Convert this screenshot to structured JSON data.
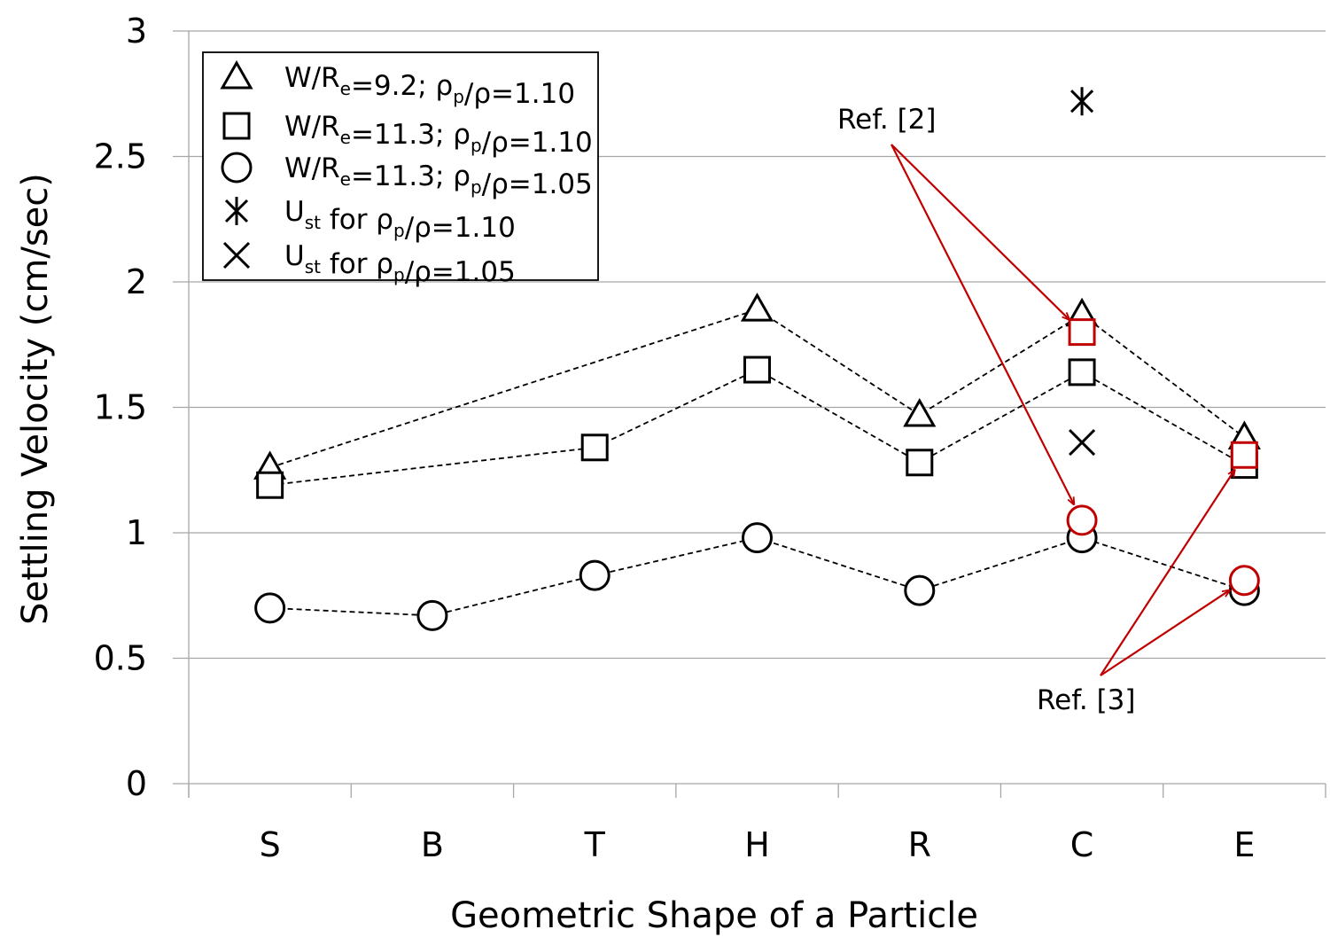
{
  "chart_data": {
    "type": "scatter",
    "title": "",
    "xlabel": "Geometric Shape of a Particle",
    "ylabel": "Settling Velocity (cm/sec)",
    "categories": [
      "S",
      "B",
      "T",
      "H",
      "R",
      "C",
      "E"
    ],
    "ylim": [
      0,
      3
    ],
    "yticks": [
      "0",
      "0.5",
      "1",
      "1.5",
      "2",
      "2.5",
      "3"
    ],
    "ytick_values": [
      0,
      0.5,
      1,
      1.5,
      2,
      2.5,
      3
    ],
    "grid": "horizontal",
    "legend_position": "top-left",
    "series": [
      {
        "name": "triangle",
        "marker": "triangle",
        "connected": true,
        "values": [
          1.26,
          null,
          null,
          1.89,
          1.47,
          1.87,
          1.38
        ]
      },
      {
        "name": "square",
        "marker": "square",
        "connected": true,
        "values": [
          1.19,
          null,
          1.34,
          1.65,
          1.28,
          1.64,
          1.27
        ]
      },
      {
        "name": "circle",
        "marker": "circle",
        "connected": true,
        "values": [
          0.7,
          0.67,
          0.83,
          0.98,
          0.77,
          0.98,
          0.77
        ]
      },
      {
        "name": "asterisk",
        "marker": "asterisk",
        "connected": false,
        "values": [
          null,
          null,
          null,
          null,
          null,
          2.72,
          null
        ]
      },
      {
        "name": "cross",
        "marker": "cross",
        "connected": false,
        "values": [
          null,
          null,
          null,
          null,
          null,
          1.36,
          null
        ]
      }
    ],
    "reference_points": [
      {
        "ref": "Ref. [2]",
        "marker": "square",
        "category": "C",
        "value": 1.8,
        "color": "#c00000"
      },
      {
        "ref": "Ref. [2]",
        "marker": "circle",
        "category": "C",
        "value": 1.05,
        "color": "#c00000"
      },
      {
        "ref": "Ref. [3]",
        "marker": "square",
        "category": "E",
        "value": 1.31,
        "color": "#c00000"
      },
      {
        "ref": "Ref. [3]",
        "marker": "circle",
        "category": "E",
        "value": 0.81,
        "color": "#c00000"
      }
    ],
    "legend": [
      {
        "marker": "triangle",
        "main": "W/R",
        "sub1": "e",
        "mid": "=9.2;   ρ",
        "sub2": "p",
        "tail": "/ρ=1.10"
      },
      {
        "marker": "square",
        "main": "W/R",
        "sub1": "e",
        "mid": "=11.3; ρ",
        "sub2": "p",
        "tail": "/ρ=1.10"
      },
      {
        "marker": "circle",
        "main": "W/R",
        "sub1": "e",
        "mid": "=11.3; ρ",
        "sub2": "p",
        "tail": "/ρ=1.05"
      },
      {
        "marker": "asterisk",
        "main": "U",
        "sub1": "st",
        "mid": " for ρ",
        "sub2": "p",
        "tail": "/ρ=1.10"
      },
      {
        "marker": "cross",
        "main": "U",
        "sub1": "st",
        "mid": " for ρ",
        "sub2": "p",
        "tail": "/ρ=1.05"
      }
    ],
    "annotations": [
      {
        "id": "ref2",
        "text": "Ref. [2]",
        "color": "#c00000"
      },
      {
        "id": "ref3",
        "text": "Ref. [3]",
        "color": "#c00000"
      }
    ]
  }
}
